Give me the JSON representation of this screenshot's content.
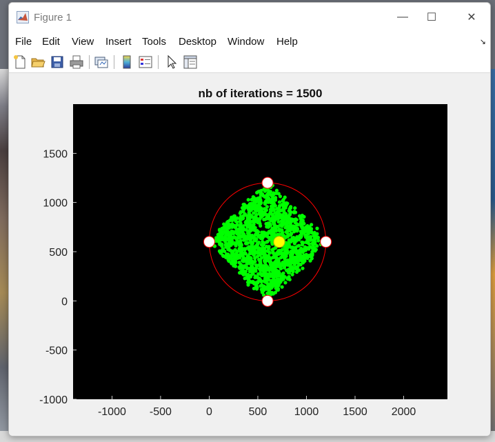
{
  "window": {
    "title": "Figure 1",
    "controls": {
      "minimize": "—",
      "maximize": "☐",
      "close": "✕"
    }
  },
  "menu": {
    "items": [
      "File",
      "Edit",
      "View",
      "Insert",
      "Tools",
      "Desktop",
      "Window",
      "Help"
    ],
    "corner_glyph": "↘"
  },
  "toolbar": {
    "buttons": [
      "new-figure-icon",
      "open-file-icon",
      "save-icon",
      "print-icon",
      "link-plot-icon",
      "insert-colorbar-icon",
      "insert-legend-icon",
      "edit-plot-pointer-icon",
      "property-inspector-icon"
    ]
  },
  "chart_data": {
    "type": "scatter",
    "title": "nb of iterations = 1500",
    "xlabel": "",
    "ylabel": "",
    "xlim": [
      -1400,
      2450
    ],
    "ylim": [
      -1000,
      2000
    ],
    "xticks": [
      -1000,
      -500,
      0,
      500,
      1000,
      1500,
      2000
    ],
    "yticks": [
      -1000,
      -500,
      0,
      500,
      1000,
      1500
    ],
    "xtick_labels": [
      "-1000",
      "-500",
      "0",
      "500",
      "1000",
      "1500",
      "2000"
    ],
    "ytick_labels": [
      "-1000",
      "-500",
      "0",
      "500",
      "1000",
      "1500"
    ],
    "background": "#000000",
    "grid": false,
    "iterations": 1500,
    "vertices": [
      {
        "x": 600,
        "y": 1200
      },
      {
        "x": 1200,
        "y": 600
      },
      {
        "x": 600,
        "y": 0
      },
      {
        "x": 0,
        "y": 600
      }
    ],
    "current_point": {
      "x": 720,
      "y": 600
    },
    "circle": {
      "cx": 600,
      "cy": 600,
      "r": 600
    },
    "colors": {
      "points": "#00ff00",
      "circle": "#ff0000",
      "vertex_fill": "#ffffff",
      "current_point": "#ffff00"
    }
  }
}
